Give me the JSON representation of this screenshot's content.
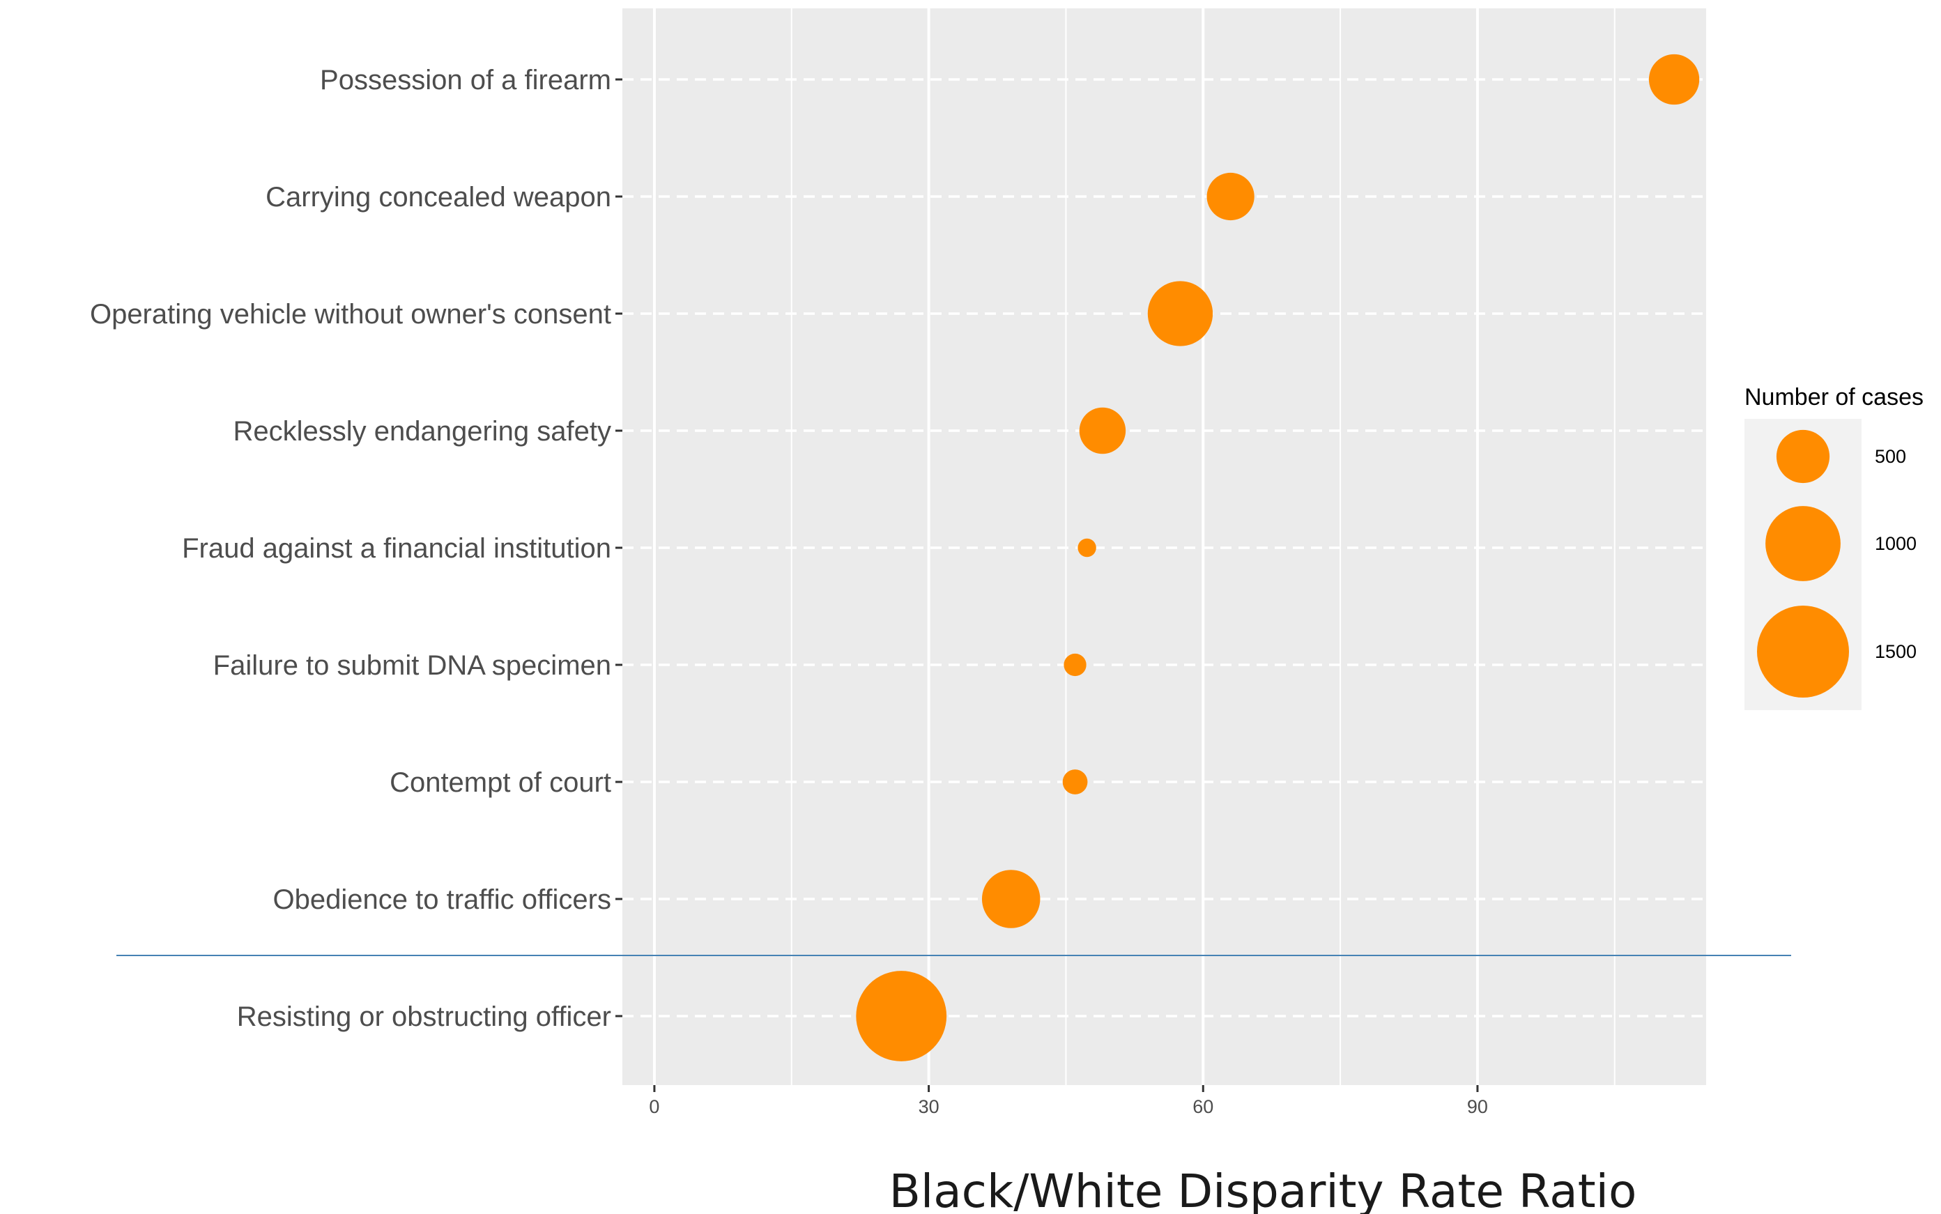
{
  "chart_data": {
    "type": "scatter",
    "xlabel": "Black/White Disparity Rate Ratio",
    "ylabel": "",
    "title": "",
    "xlim": [
      -3.5,
      115
    ],
    "x_ticks": [
      0,
      30,
      60,
      90
    ],
    "x_tick_labels": [
      "0",
      "30",
      "60",
      "90"
    ],
    "grid": true,
    "legend_placement": "right",
    "categories": [
      "Possession of a firearm",
      "Carrying concealed weapon",
      "Operating vehicle without owner's consent",
      "Recklessly endangering safety",
      "Fraud against a financial institution",
      "Failure to submit DNA specimen",
      "Contempt of court",
      "Obedience to traffic officers",
      "Resisting or obstructing officer"
    ],
    "series": [
      {
        "points": [
          {
            "category": "Possession of a firearm",
            "x": 111.5,
            "size": 450
          },
          {
            "category": "Carrying concealed weapon",
            "x": 63,
            "size": 400
          },
          {
            "category": "Operating vehicle without owner's consent",
            "x": 57.5,
            "size": 750
          },
          {
            "category": "Recklessly endangering safety",
            "x": 49,
            "size": 380
          },
          {
            "category": "Fraud against a financial institution",
            "x": 47.3,
            "size": 60
          },
          {
            "category": "Failure to submit DNA specimen",
            "x": 46,
            "size": 90
          },
          {
            "category": "Contempt of court",
            "x": 46,
            "size": 110
          },
          {
            "category": "Obedience to traffic officers",
            "x": 39,
            "size": 600
          },
          {
            "category": "Resisting or obstructing officer",
            "x": 27,
            "size": 1450
          }
        ]
      }
    ],
    "legend": {
      "title": "Number of cases",
      "entries": [
        {
          "label": "500",
          "size": 500
        },
        {
          "label": "1000",
          "size": 1000
        },
        {
          "label": "1500",
          "size": 1500
        }
      ]
    },
    "colors": {
      "point": "#ff8c00",
      "panel": "#ebebeb",
      "gridline": "#ffffff",
      "separator": "#4682b4",
      "legend_key_bg": "#f2f2f2"
    }
  }
}
